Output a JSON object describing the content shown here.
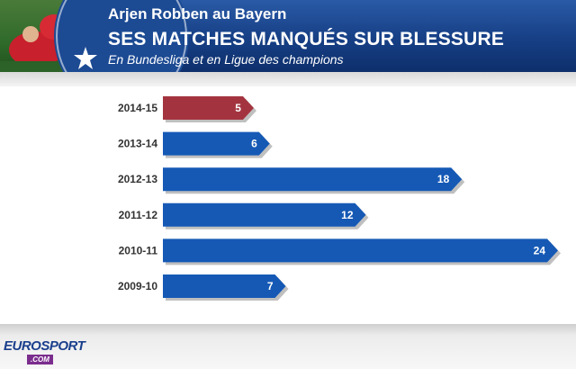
{
  "header": {
    "supertitle": "Arjen Robben au Bayern",
    "title": "SES MATCHES MANQUÉS SUR BLESSURE",
    "subtitle": "En Bundesliga et en Ligue des champions"
  },
  "footer": {
    "logo_main": "EUROSPORT",
    "logo_tag": ".COM"
  },
  "colors": {
    "highlight_bar": "#a3343f",
    "default_bar": "#1559b5",
    "bar_shadow": "#8a8a8a"
  },
  "chart_data": {
    "type": "bar",
    "orientation": "horizontal",
    "title": "SES MATCHES MANQUÉS SUR BLESSURE",
    "subtitle": "En Bundesliga et en Ligue des champions",
    "categories": [
      "2014-15",
      "2013-14",
      "2012-13",
      "2011-12",
      "2010-11",
      "2009-10"
    ],
    "values": [
      5,
      6,
      18,
      12,
      24,
      7
    ],
    "highlight_index": 0,
    "xlim": [
      0,
      24
    ],
    "grid": false,
    "legend": "none"
  }
}
